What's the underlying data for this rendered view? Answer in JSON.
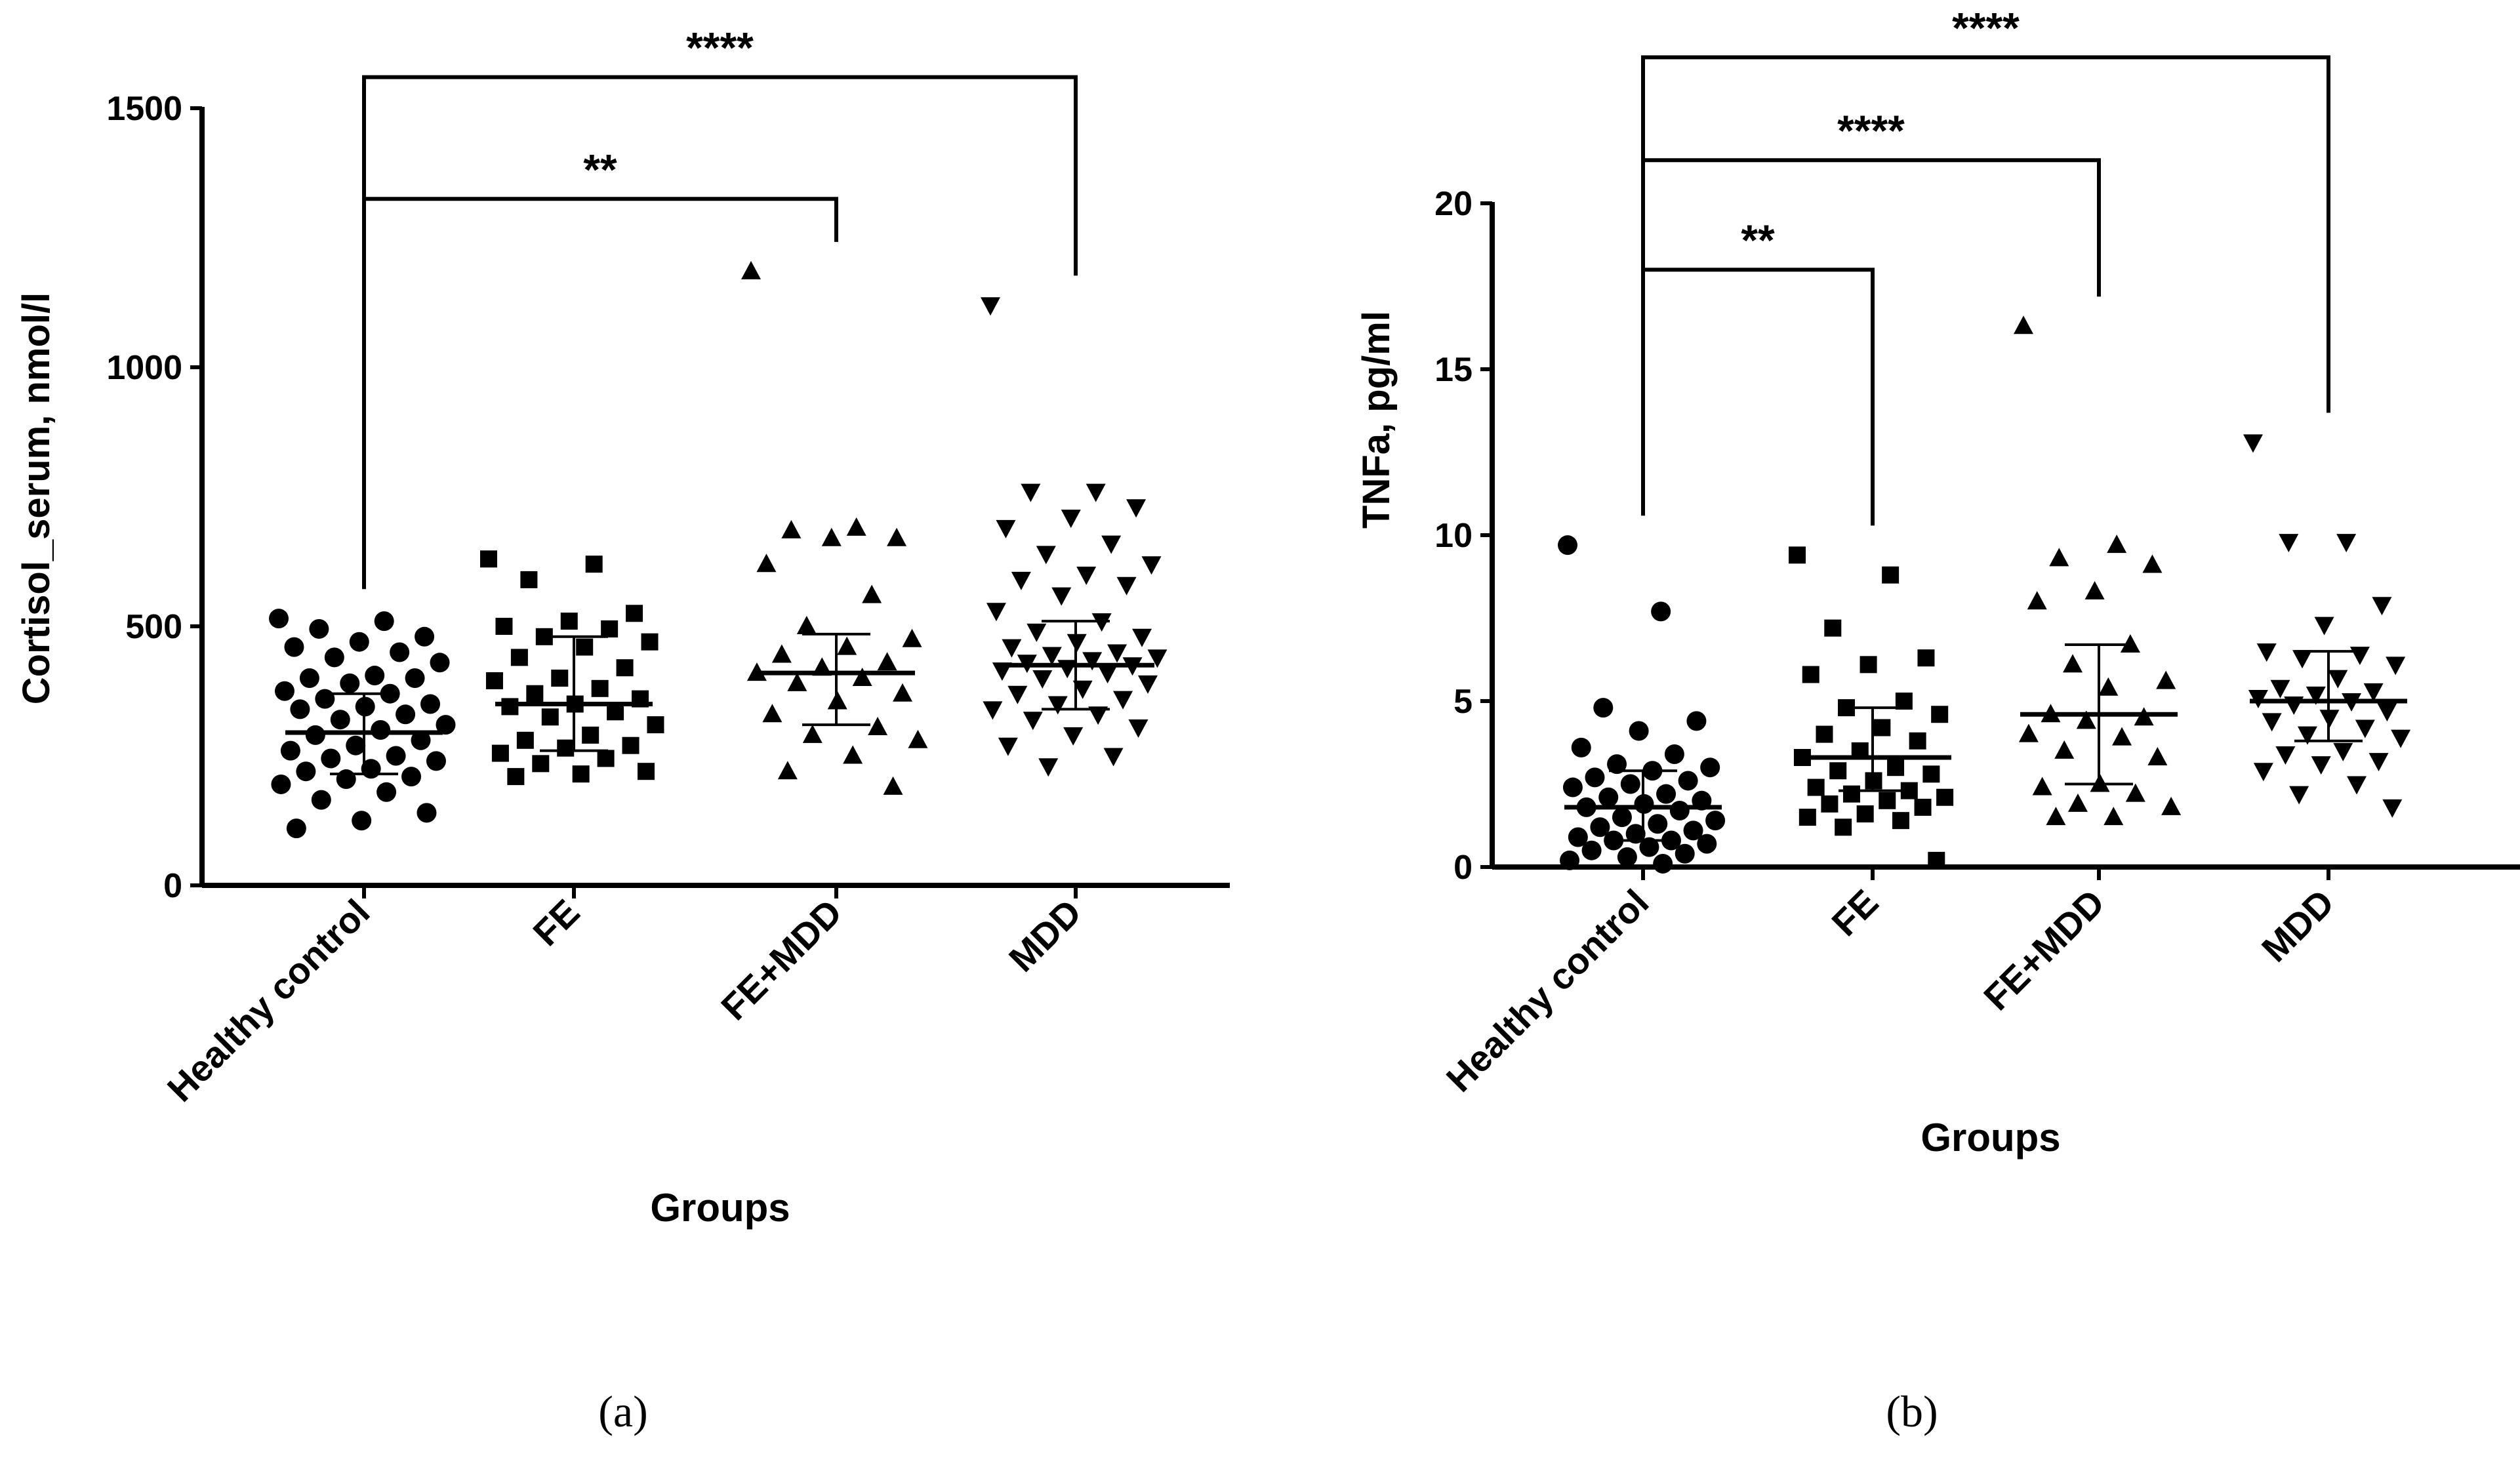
{
  "chart_data": [
    {
      "type": "scatter",
      "panel_label": "(a)",
      "xlabel": "Groups",
      "ylabel": "Cortisol_serum, nmol/l",
      "ylim": [
        0,
        1500
      ],
      "yticks": [
        0,
        500,
        1000,
        1500
      ],
      "categories": [
        "Healthy control",
        "FE",
        "FE+MDD",
        "MDD"
      ],
      "series": [
        {
          "name": "Healthy control",
          "marker": "circle",
          "points": [
            515,
            510,
            495,
            480,
            470,
            460,
            450,
            440,
            430,
            405,
            400,
            400,
            390,
            375,
            370,
            360,
            350,
            345,
            340,
            330,
            320,
            310,
            300,
            290,
            280,
            270,
            260,
            250,
            245,
            240,
            225,
            220,
            210,
            205,
            195,
            180,
            165,
            140,
            125,
            110
          ],
          "mean": 295,
          "sd": [
            215,
            370
          ]
        },
        {
          "name": "FE",
          "marker": "square",
          "points": [
            630,
            620,
            590,
            525,
            510,
            500,
            495,
            480,
            470,
            460,
            440,
            420,
            400,
            395,
            380,
            370,
            360,
            350,
            345,
            335,
            325,
            310,
            290,
            280,
            270,
            265,
            255,
            245,
            235,
            220,
            215,
            210
          ],
          "mean": 350,
          "sd": [
            260,
            480
          ]
        },
        {
          "name": "FE+MDD",
          "marker": "triangle-up",
          "points": [
            1185,
            690,
            685,
            670,
            670,
            620,
            560,
            500,
            475,
            460,
            445,
            430,
            420,
            410,
            400,
            390,
            370,
            355,
            330,
            305,
            290,
            280,
            250,
            220,
            190
          ],
          "mean": 410,
          "sd": [
            310,
            485
          ]
        },
        {
          "name": "MDD",
          "marker": "triangle-down",
          "points": [
            1120,
            760,
            760,
            730,
            710,
            690,
            660,
            640,
            620,
            600,
            590,
            580,
            560,
            530,
            510,
            490,
            480,
            470,
            460,
            450,
            445,
            440,
            435,
            430,
            425,
            420,
            415,
            410,
            400,
            390,
            380,
            370,
            360,
            350,
            340,
            330,
            320,
            305,
            290,
            270,
            250,
            230
          ],
          "mean": 425,
          "sd": [
            340,
            510
          ]
        }
      ],
      "significance": [
        {
          "from": "Healthy control",
          "to": "FE+MDD",
          "label": "**",
          "y": 1325
        },
        {
          "from": "Healthy control",
          "to": "MDD",
          "label": "****",
          "y": 1560
        }
      ]
    },
    {
      "type": "scatter",
      "panel_label": "(b)",
      "xlabel": "Groups",
      "ylabel": "TNFa, pg/ml",
      "ylim": [
        0,
        20
      ],
      "yticks": [
        0,
        5,
        10,
        15,
        20
      ],
      "categories": [
        "Healthy control",
        "FE",
        "FE+MDD",
        "MDD"
      ],
      "series": [
        {
          "name": "Healthy control",
          "marker": "circle",
          "points": [
            9.7,
            7.7,
            4.8,
            4.4,
            4.1,
            3.6,
            3.4,
            3.1,
            3.0,
            2.9,
            2.7,
            2.6,
            2.5,
            2.4,
            2.2,
            2.1,
            2.0,
            1.9,
            1.8,
            1.7,
            1.5,
            1.4,
            1.3,
            1.2,
            1.1,
            1.0,
            0.9,
            0.8,
            0.8,
            0.7,
            0.6,
            0.5,
            0.4,
            0.3,
            0.2,
            0.1
          ],
          "mean": 1.8,
          "sd": [
            0.8,
            2.9
          ]
        },
        {
          "name": "FE",
          "marker": "square",
          "points": [
            9.4,
            8.8,
            7.2,
            6.3,
            6.1,
            5.8,
            5.0,
            4.8,
            4.6,
            4.2,
            4.0,
            3.8,
            3.5,
            3.3,
            3.0,
            2.9,
            2.8,
            2.6,
            2.4,
            2.3,
            2.2,
            2.1,
            2.0,
            1.9,
            1.8,
            1.6,
            1.5,
            1.4,
            1.2,
            0.2
          ],
          "mean": 3.3,
          "sd": [
            2.3,
            4.8
          ]
        },
        {
          "name": "FE+MDD",
          "marker": "triangle-up",
          "points": [
            16.3,
            9.7,
            9.3,
            9.1,
            8.3,
            8.0,
            6.7,
            6.1,
            5.6,
            5.4,
            4.6,
            4.5,
            4.4,
            4.0,
            3.9,
            3.5,
            3.3,
            2.5,
            2.4,
            2.2,
            1.9,
            1.8,
            1.5,
            1.5
          ],
          "mean": 4.6,
          "sd": [
            2.5,
            6.7
          ]
        },
        {
          "name": "MDD",
          "marker": "triangle-down",
          "points": [
            12.8,
            9.8,
            9.8,
            7.9,
            7.3,
            6.5,
            6.4,
            6.3,
            6.1,
            5.7,
            5.4,
            5.3,
            5.2,
            5.1,
            5.0,
            4.9,
            4.7,
            4.5,
            4.4,
            4.2,
            4.0,
            3.9,
            3.5,
            3.4,
            3.2,
            3.1,
            2.9,
            2.5,
            2.2,
            1.8
          ],
          "mean": 5.0,
          "sd": [
            3.8,
            6.5
          ]
        }
      ],
      "significance": [
        {
          "from": "Healthy control",
          "to": "FE",
          "label": "**",
          "y": 18.0
        },
        {
          "from": "Healthy control",
          "to": "FE+MDD",
          "label": "****",
          "y": 21.3
        },
        {
          "from": "Healthy control",
          "to": "MDD",
          "label": "****",
          "y": 24.4
        }
      ]
    }
  ]
}
